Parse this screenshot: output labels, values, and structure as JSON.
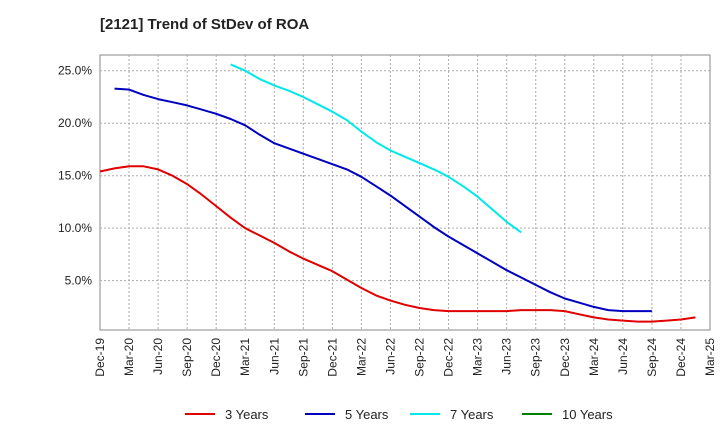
{
  "chart_data": {
    "type": "line",
    "title": "[2121]  Trend of StDev of ROA",
    "xlabel": "",
    "ylabel": "",
    "x_ticks": [
      "Dec-19",
      "Mar-20",
      "Jun-20",
      "Sep-20",
      "Dec-20",
      "Mar-21",
      "Jun-21",
      "Sep-21",
      "Dec-21",
      "Mar-22",
      "Jun-22",
      "Sep-22",
      "Dec-22",
      "Mar-23",
      "Jun-23",
      "Sep-23",
      "Dec-23",
      "Mar-24",
      "Jun-24",
      "Sep-24",
      "Dec-24",
      "Mar-25"
    ],
    "y_ticks": [
      "5.0%",
      "10.0%",
      "15.0%",
      "20.0%",
      "25.0%"
    ],
    "y_tick_values": [
      5,
      10,
      15,
      20,
      25
    ],
    "ylim": [
      0.3,
      26.5
    ],
    "grid": true,
    "legend_position": "bottom",
    "series": [
      {
        "name": "3 Years",
        "color": "#e00000",
        "start_index": 0,
        "values": [
          15.4,
          15.7,
          15.9,
          15.9,
          15.6,
          15.0,
          14.2,
          13.2,
          12.1,
          11.0,
          10.0,
          9.3,
          8.6,
          7.8,
          7.1,
          6.5,
          5.9,
          5.1,
          4.3,
          3.6,
          3.1,
          2.7,
          2.4,
          2.2,
          2.1,
          2.1,
          2.1,
          2.1,
          2.1,
          2.2,
          2.2,
          2.2,
          2.1,
          1.8,
          1.5,
          1.3,
          1.2,
          1.1,
          1.1,
          1.2,
          1.3,
          1.5
        ]
      },
      {
        "name": "5 Years",
        "color": "#0000c0",
        "start_index": 1,
        "values": [
          23.3,
          23.2,
          22.7,
          22.3,
          22.0,
          21.7,
          21.3,
          20.9,
          20.4,
          19.8,
          18.9,
          18.1,
          17.6,
          17.1,
          16.6,
          16.1,
          15.6,
          14.9,
          14.0,
          13.1,
          12.1,
          11.1,
          10.1,
          9.2,
          8.4,
          7.6,
          6.8,
          6.0,
          5.3,
          4.6,
          3.9,
          3.3,
          2.9,
          2.5,
          2.2,
          2.1,
          2.1,
          2.1
        ]
      },
      {
        "name": "7 Years",
        "color": "#00e8e8",
        "start_index": 9,
        "values": [
          25.6,
          25.0,
          24.2,
          23.6,
          23.1,
          22.5,
          21.8,
          21.1,
          20.3,
          19.2,
          18.2,
          17.4,
          16.8,
          16.2,
          15.6,
          14.9,
          14.0,
          13.0,
          11.8,
          10.6,
          9.6
        ]
      },
      {
        "name": "10 Years",
        "color": "#008000",
        "start_index": 0,
        "values": []
      }
    ]
  }
}
